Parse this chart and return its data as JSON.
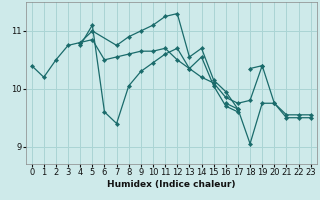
{
  "xlabel": "Humidex (Indice chaleur)",
  "bg_color": "#ceeaea",
  "grid_color": "#aad4d4",
  "line_color": "#1a6b6b",
  "xlim": [
    -0.5,
    23.5
  ],
  "ylim": [
    8.7,
    11.5
  ],
  "yticks": [
    9,
    10,
    11
  ],
  "xticks": [
    0,
    1,
    2,
    3,
    4,
    5,
    6,
    7,
    8,
    9,
    10,
    11,
    12,
    13,
    14,
    15,
    16,
    17,
    18,
    19,
    20,
    21,
    22,
    23
  ],
  "series": [
    {
      "x": [
        0,
        1,
        2,
        3,
        4,
        5,
        6,
        7,
        8,
        9,
        10,
        11,
        12,
        13,
        14,
        15,
        16,
        17,
        18,
        19,
        20,
        21,
        22,
        23
      ],
      "y": [
        10.4,
        10.2,
        10.5,
        10.75,
        10.8,
        10.85,
        10.5,
        10.55,
        10.6,
        10.65,
        10.65,
        10.7,
        10.5,
        10.35,
        10.2,
        10.1,
        9.85,
        9.75,
        9.8,
        10.4,
        9.75,
        9.55,
        9.55,
        9.55
      ]
    },
    {
      "x": [
        4,
        5,
        6,
        7,
        8,
        9,
        10,
        11,
        12,
        13,
        14,
        15,
        16,
        17
      ],
      "y": [
        10.75,
        11.1,
        9.6,
        9.4,
        10.05,
        10.3,
        10.45,
        10.6,
        10.7,
        10.35,
        10.55,
        10.05,
        9.7,
        9.6
      ]
    },
    {
      "x": [
        4,
        5,
        7,
        8,
        9,
        10,
        11,
        12,
        13,
        14,
        15,
        16,
        17
      ],
      "y": [
        10.8,
        11.0,
        10.75,
        10.9,
        11.0,
        11.1,
        11.25,
        11.3,
        10.55,
        10.7,
        10.15,
        9.95,
        9.65
      ]
    },
    {
      "x": [
        16,
        17,
        18,
        19,
        20,
        21,
        22,
        23
      ],
      "y": [
        9.75,
        9.65,
        9.05,
        9.75,
        9.75,
        9.5,
        9.5,
        9.5
      ]
    },
    {
      "x": [
        18,
        19
      ],
      "y": [
        10.35,
        10.4
      ]
    }
  ]
}
